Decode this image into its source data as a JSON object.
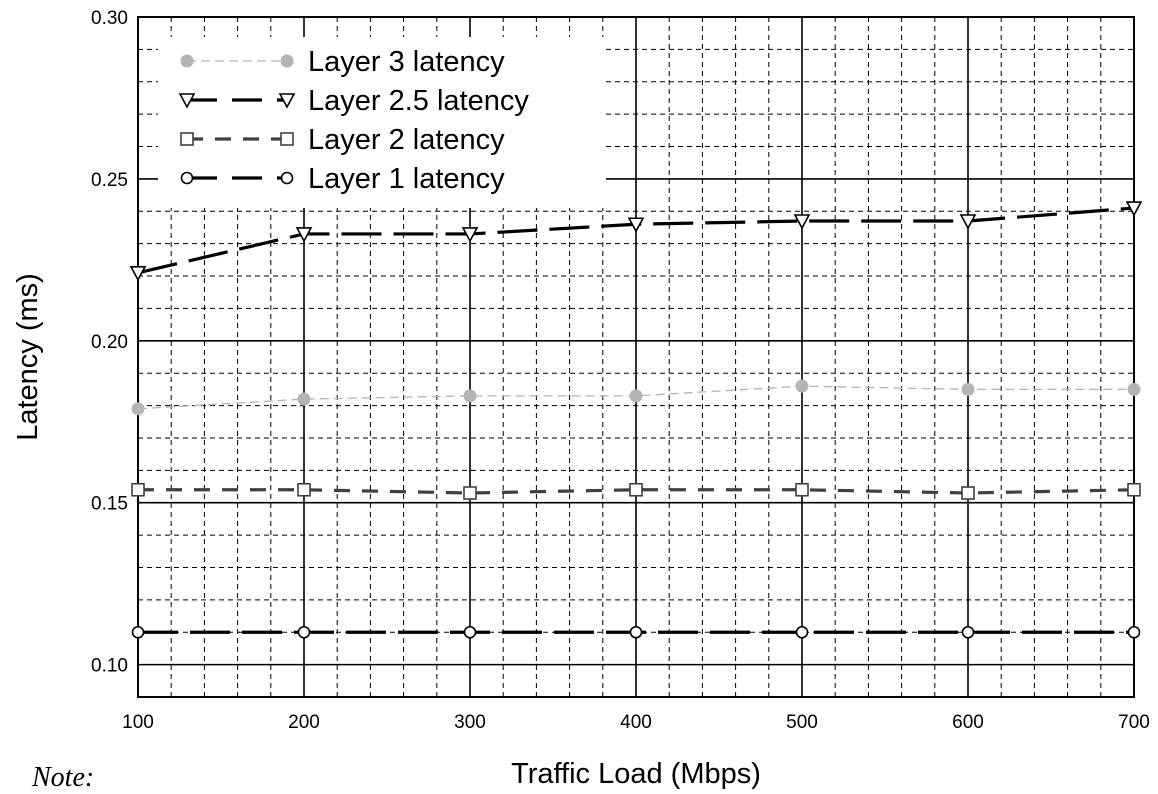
{
  "chart_data": {
    "type": "line",
    "xlabel": "Traffic Load (Mbps)",
    "ylabel": "Latency (ms)",
    "xlim": [
      100,
      700
    ],
    "ylim": [
      0.09,
      0.3
    ],
    "xticks": [
      "100",
      "200",
      "300",
      "400",
      "500",
      "600",
      "700"
    ],
    "yticks": [
      "0.10",
      "0.15",
      "0.20",
      "0.25",
      "0.30"
    ],
    "grid": true,
    "legend_position": "top-left",
    "x": [
      100,
      200,
      300,
      400,
      500,
      600,
      700
    ],
    "series": [
      {
        "name": "Layer 3 latency",
        "values": [
          0.179,
          0.182,
          0.183,
          0.183,
          0.186,
          0.185,
          0.185
        ],
        "color": "#b4b4b4",
        "marker": "filled-circle",
        "line": "thin-dash"
      },
      {
        "name": "Layer 2.5 latency",
        "values": [
          0.221,
          0.233,
          0.233,
          0.236,
          0.237,
          0.237,
          0.241
        ],
        "color": "#000000",
        "marker": "down-triangle",
        "line": "long-dash"
      },
      {
        "name": "Layer 2 latency",
        "values": [
          0.154,
          0.154,
          0.153,
          0.154,
          0.154,
          0.153,
          0.154
        ],
        "color": "#404040",
        "marker": "square",
        "line": "dash"
      },
      {
        "name": "Layer 1 latency",
        "values": [
          0.11,
          0.11,
          0.11,
          0.11,
          0.11,
          0.11,
          0.11
        ],
        "color": "#000000",
        "marker": "open-circle",
        "line": "long-dash"
      }
    ]
  },
  "note": "Note:"
}
